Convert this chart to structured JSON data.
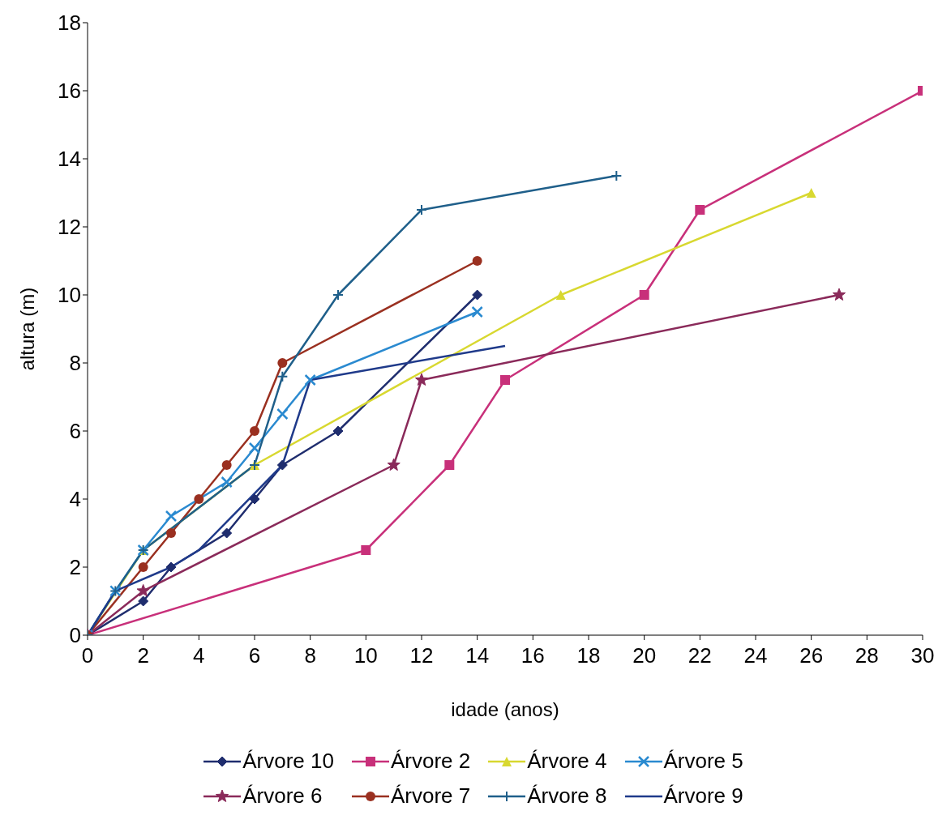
{
  "chart_data": {
    "type": "line",
    "xlabel": "idade (anos)",
    "ylabel": "altura (m)",
    "xlim": [
      0,
      30
    ],
    "xticks": [
      0,
      2,
      4,
      6,
      8,
      10,
      12,
      14,
      16,
      18,
      20,
      22,
      24,
      26,
      28,
      30
    ],
    "ylim": [
      0,
      18
    ],
    "yticks": [
      0,
      2,
      4,
      6,
      8,
      10,
      12,
      14,
      16,
      18
    ],
    "grid": false,
    "legend": "bottom",
    "line_style": "solid",
    "series": [
      {
        "name": "Árvore 10",
        "color": "#1f2d6e",
        "marker": "diamond",
        "x": [
          0,
          2,
          3,
          5,
          6,
          7,
          9,
          14
        ],
        "values": [
          0,
          1,
          2,
          3,
          4,
          5,
          6,
          10
        ]
      },
      {
        "name": "Árvore 2",
        "color": "#c8307a",
        "marker": "square",
        "x": [
          0,
          10,
          13,
          15,
          20,
          22,
          30
        ],
        "values": [
          0,
          2.5,
          5,
          7.5,
          10,
          12.5,
          16
        ]
      },
      {
        "name": "Árvore 4",
        "color": "#d8d830",
        "marker": "triangle",
        "x": [
          0,
          2,
          6,
          17,
          26
        ],
        "values": [
          0,
          2.5,
          5,
          10,
          13
        ]
      },
      {
        "name": "Árvore 5",
        "color": "#2a8ad0",
        "marker": "cross",
        "x": [
          0,
          1,
          2,
          3,
          5,
          6,
          7,
          8,
          14
        ],
        "values": [
          0,
          1.3,
          2.5,
          3.5,
          4.5,
          5.5,
          6.5,
          7.5,
          9.5
        ]
      },
      {
        "name": "Árvore 6",
        "color": "#8a2a5a",
        "marker": "star",
        "x": [
          0,
          2,
          11,
          12,
          27
        ],
        "values": [
          0,
          1.3,
          5,
          7.5,
          10
        ]
      },
      {
        "name": "Árvore 7",
        "color": "#9a3020",
        "marker": "circle",
        "x": [
          0,
          2,
          3,
          4,
          5,
          6,
          7,
          14
        ],
        "values": [
          0,
          2,
          3,
          4,
          5,
          6,
          8,
          11
        ]
      },
      {
        "name": "Árvore 8",
        "color": "#1f5f8a",
        "marker": "plus",
        "x": [
          0,
          1,
          2,
          6,
          7,
          9,
          12,
          19
        ],
        "values": [
          0,
          1.3,
          2.5,
          5,
          7.6,
          10,
          12.5,
          13.5
        ]
      },
      {
        "name": "Árvore 9",
        "color": "#1f3a8a",
        "marker": "none",
        "x": [
          0,
          1,
          3,
          4,
          7,
          8,
          15
        ],
        "values": [
          0,
          1.3,
          2,
          2.5,
          5,
          7.5,
          8.5
        ]
      }
    ]
  }
}
